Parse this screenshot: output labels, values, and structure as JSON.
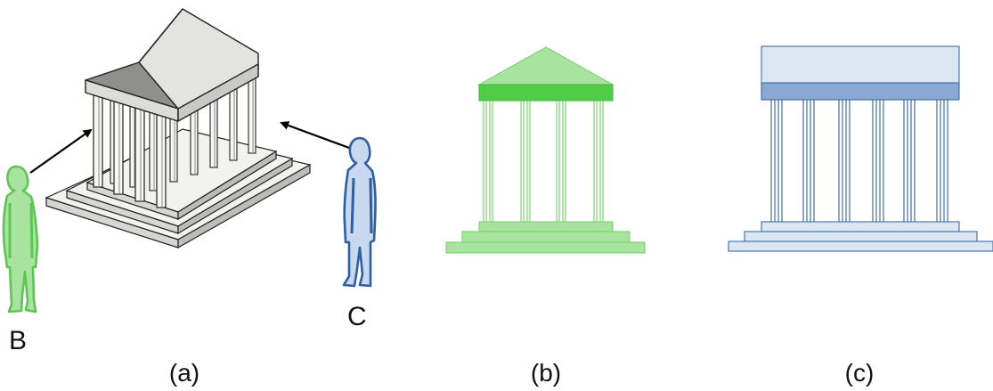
{
  "figure": {
    "panels": [
      {
        "id": "a",
        "caption": "(a)"
      },
      {
        "id": "b",
        "caption": "(b)"
      },
      {
        "id": "c",
        "caption": "(c)"
      }
    ],
    "observers": [
      {
        "id": "B",
        "label": "B",
        "color": "#5fd35f"
      },
      {
        "id": "C",
        "label": "C",
        "color": "#3f6fae"
      }
    ]
  },
  "colors": {
    "green_light": "#a9e3a0",
    "green_dark": "#50cc48",
    "green_stroke": "#5fc455",
    "blue_light": "#dbe6f3",
    "blue_dark": "#8aa8d2",
    "blue_stroke": "#2f5f9f",
    "stone_light": "#eeeeea",
    "stone_mid": "#cfcfcb",
    "stone_dark": "#7a7a76"
  }
}
